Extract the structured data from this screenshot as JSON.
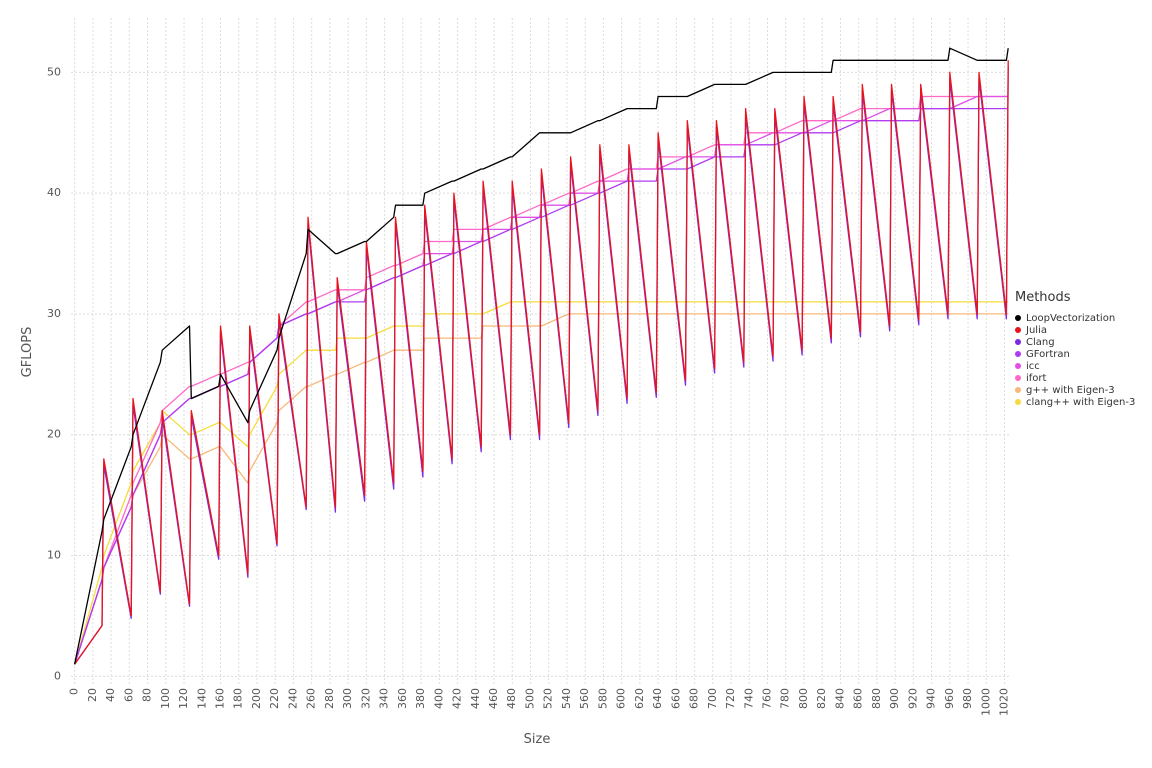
{
  "chart_data": {
    "type": "line",
    "x_label": "Size",
    "y_label": "GFLOPS",
    "legend_title": "Methods",
    "legend_position": "right",
    "grid": true,
    "xlim": [
      -4,
      1026
    ],
    "ylim": [
      -0.8,
      54.5
    ],
    "xticks": [
      0,
      20,
      40,
      60,
      80,
      100,
      120,
      140,
      160,
      180,
      200,
      220,
      240,
      260,
      280,
      300,
      320,
      340,
      360,
      380,
      400,
      420,
      440,
      460,
      480,
      500,
      520,
      540,
      560,
      580,
      600,
      620,
      640,
      660,
      680,
      700,
      720,
      740,
      760,
      780,
      800,
      820,
      840,
      860,
      880,
      900,
      920,
      940,
      960,
      980,
      1000,
      1020
    ],
    "yticks": [
      0,
      10,
      20,
      30,
      40,
      50
    ],
    "x": [
      0,
      30,
      32,
      62,
      64,
      94,
      96,
      126,
      128,
      158,
      160,
      190,
      192,
      222,
      224,
      254,
      256,
      286,
      288,
      318,
      320,
      350,
      352,
      382,
      384,
      414,
      416,
      446,
      448,
      478,
      480,
      510,
      512,
      542,
      544,
      574,
      576,
      606,
      608,
      638,
      640,
      670,
      672,
      702,
      704,
      734,
      736,
      766,
      768,
      798,
      800,
      830,
      832,
      862,
      864,
      894,
      896,
      926,
      928,
      958,
      960,
      990,
      992,
      1022,
      1024
    ],
    "series": [
      {
        "name": "clang++ with Eigen-3",
        "color": "#f5dc3c",
        "values": [
          1,
          9,
          10,
          16,
          17,
          21,
          22,
          20,
          20,
          21,
          21,
          19,
          20,
          24,
          25,
          27,
          27,
          27,
          28,
          28,
          28,
          29,
          29,
          29,
          30,
          30,
          30,
          30,
          30,
          31,
          31,
          31,
          31,
          31,
          31,
          31,
          31,
          31,
          31,
          31,
          31,
          31,
          31,
          31,
          31,
          31,
          31,
          31,
          31,
          31,
          31,
          31,
          31,
          31,
          31,
          31,
          31,
          31,
          31,
          31,
          31,
          31,
          31,
          31,
          31
        ]
      },
      {
        "name": "g++ with Eigen-3",
        "color": "#f8b878",
        "values": [
          1,
          8,
          9,
          14,
          15,
          19,
          20,
          18,
          18,
          19,
          19,
          16,
          17,
          21,
          22,
          24,
          24,
          25,
          25,
          26,
          26,
          27,
          27,
          27,
          28,
          28,
          28,
          28,
          29,
          29,
          29,
          29,
          29,
          30,
          30,
          30,
          30,
          30,
          30,
          30,
          30,
          30,
          30,
          30,
          30,
          30,
          30,
          30,
          30,
          30,
          30,
          30,
          30,
          30,
          30,
          30,
          30,
          30,
          30,
          30,
          30,
          30,
          30,
          30,
          30
        ]
      },
      {
        "name": "ifort",
        "color": "#ff69c8",
        "values": [
          1,
          8,
          9,
          15,
          16,
          21,
          22,
          24,
          24,
          25,
          25,
          26,
          26,
          28,
          29,
          31,
          31,
          32,
          32,
          32,
          33,
          34,
          34,
          35,
          36,
          36,
          37,
          37,
          37,
          38,
          38,
          39,
          39,
          40,
          40,
          41,
          41,
          42,
          42,
          42,
          43,
          43,
          43,
          44,
          44,
          44,
          45,
          45,
          45,
          46,
          46,
          46,
          46,
          47,
          47,
          47,
          47,
          47,
          48,
          48,
          48,
          48,
          48,
          48,
          48
        ]
      },
      {
        "name": "icc",
        "color": "#e050e8",
        "values": [
          1,
          8,
          9,
          14,
          15,
          20,
          21,
          23,
          23,
          24,
          24,
          25,
          26,
          28,
          29,
          30,
          30,
          31,
          31,
          32,
          32,
          33,
          33,
          34,
          35,
          35,
          36,
          36,
          37,
          37,
          38,
          38,
          39,
          39,
          40,
          40,
          41,
          41,
          42,
          42,
          42,
          43,
          43,
          43,
          44,
          44,
          44,
          45,
          45,
          45,
          45,
          46,
          46,
          46,
          46,
          47,
          47,
          47,
          47,
          47,
          47,
          48,
          48,
          48,
          48
        ]
      },
      {
        "name": "GFortran",
        "color": "#b03bf0",
        "values": [
          1,
          8,
          9,
          14,
          15,
          20,
          21,
          23,
          23,
          24,
          24,
          25,
          26,
          28,
          29,
          30,
          30,
          31,
          31,
          31,
          32,
          33,
          33,
          34,
          34,
          35,
          35,
          36,
          36,
          37,
          37,
          38,
          38,
          39,
          39,
          40,
          40,
          41,
          41,
          41,
          42,
          42,
          42,
          43,
          43,
          43,
          44,
          44,
          44,
          45,
          45,
          45,
          45,
          46,
          46,
          46,
          46,
          46,
          47,
          47,
          47,
          47,
          47,
          47,
          47
        ]
      },
      {
        "name": "Clang",
        "color": "#7b2be2",
        "values": [
          1,
          4.2,
          17.5,
          4.8,
          22.5,
          6.8,
          21.5,
          5.8,
          21.5,
          9.7,
          28.5,
          8.2,
          28.5,
          10.8,
          29.5,
          13.8,
          37.5,
          13.6,
          32.5,
          14.5,
          35.5,
          15.5,
          37.5,
          16.5,
          38.5,
          17.6,
          39.5,
          18.6,
          40.5,
          19.6,
          40.5,
          19.6,
          41.5,
          20.6,
          42.5,
          21.6,
          43.5,
          22.6,
          43.5,
          23.1,
          44.5,
          24.1,
          45.5,
          25.1,
          45.5,
          25.6,
          46.5,
          26.1,
          46.5,
          26.6,
          47.5,
          27.6,
          47.5,
          28.1,
          48.5,
          28.6,
          48.5,
          29.1,
          48.5,
          29.6,
          49.5,
          29.6,
          49.5,
          29.6,
          50.5
        ]
      },
      {
        "name": "Julia",
        "color": "#e8141c",
        "values": [
          1,
          4.2,
          18,
          5,
          23,
          7,
          22,
          6,
          22,
          10,
          29,
          8.5,
          29,
          11,
          30,
          14,
          38,
          14,
          33,
          15,
          36,
          16,
          38,
          17,
          39,
          18,
          40,
          19,
          41,
          20,
          41,
          20,
          42,
          21,
          43,
          22,
          44,
          23,
          44,
          23.5,
          45,
          24.5,
          46,
          25.5,
          46,
          26,
          47,
          26.5,
          47,
          27,
          48,
          28,
          48,
          28.5,
          49,
          29,
          49,
          29.5,
          49,
          30,
          50,
          30,
          50,
          30,
          51
        ]
      },
      {
        "name": "LoopVectorization",
        "color": "#000000",
        "values": [
          1,
          12,
          13,
          19,
          20,
          26,
          27,
          29,
          23,
          24,
          25,
          21,
          22,
          27,
          28,
          35,
          37,
          35,
          35,
          36,
          36,
          38,
          39,
          39,
          40,
          41,
          41,
          42,
          42,
          43,
          43,
          45,
          45,
          45,
          45,
          46,
          46,
          47,
          47,
          47,
          48,
          48,
          48,
          49,
          49,
          49,
          49,
          50,
          50,
          50,
          50,
          50,
          51,
          51,
          51,
          51,
          51,
          51,
          51,
          51,
          52,
          51,
          51,
          51,
          52
        ]
      }
    ]
  }
}
